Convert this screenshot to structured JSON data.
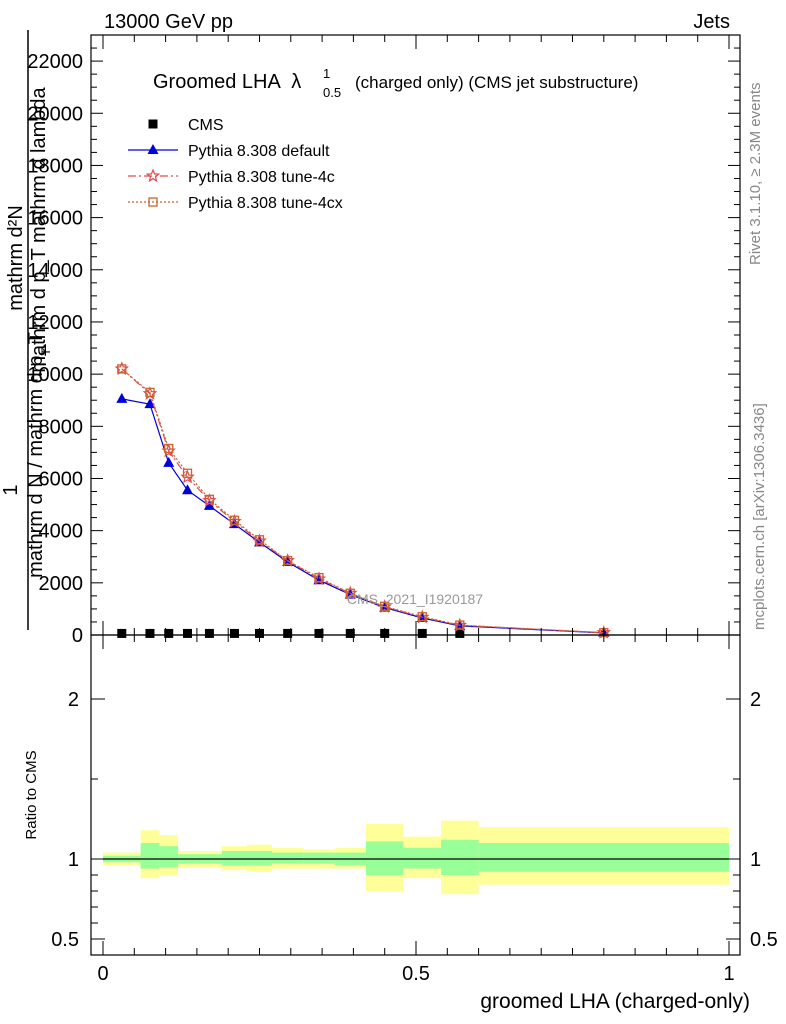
{
  "header": {
    "energy_label": "13000 GeV pp",
    "category_label": "Jets"
  },
  "side_text": {
    "rivet": "Rivet 3.1.10, ≥ 2.3M events",
    "mcplots": "mcplots.cern.ch [arXiv:1306.3436]"
  },
  "watermark": "CMS_2021_I1920187",
  "chart_data": [
    {
      "type": "line",
      "title_main": "Groomed LHA",
      "title_lambda": "λ",
      "title_sup": "1",
      "title_sub": "0.5",
      "title_rest": "(charged only) (CMS jet substructure)",
      "ylabel_top": "mathrm d²N",
      "ylabel_bottom": "mathrm d p_T mathrm d lambda",
      "ylabel_lower_top": "1",
      "ylabel_lower": "mathrm d N / mathrm d p_T",
      "ylabel_lower_sub": "T",
      "ylim": [
        0,
        23000
      ],
      "xlim": [
        -0.04,
        1.02
      ],
      "y_ticks": [
        0,
        2000,
        4000,
        6000,
        8000,
        10000,
        12000,
        14000,
        16000,
        18000,
        20000,
        22000
      ],
      "y_tick_labels": [
        "0",
        "2000",
        "4000",
        "6000",
        "8000",
        "10000",
        "12000",
        "14000",
        "16000",
        "18000",
        "20000",
        "22000"
      ],
      "legend": [
        {
          "key": "cms",
          "label": "CMS",
          "color": "#000000",
          "marker": "square"
        },
        {
          "key": "default",
          "label": "Pythia 8.308 default",
          "color": "#0000dd",
          "marker": "triangle"
        },
        {
          "key": "tune4c",
          "label": "Pythia 8.308 tune-4c",
          "color": "#e24a4a",
          "marker": "star"
        },
        {
          "key": "tune4cx",
          "label": "Pythia 8.308 tune-4cx",
          "color": "#c8642e",
          "marker": "open-square"
        }
      ],
      "x": [
        0.03,
        0.075,
        0.105,
        0.135,
        0.17,
        0.21,
        0.25,
        0.295,
        0.345,
        0.395,
        0.45,
        0.51,
        0.57,
        0.8
      ],
      "series": [
        {
          "key": "cms",
          "values": [
            60,
            60,
            60,
            60,
            60,
            60,
            60,
            60,
            60,
            60,
            60,
            60,
            60,
            0
          ]
        },
        {
          "key": "default",
          "values": [
            9050,
            8850,
            6600,
            5550,
            4950,
            4250,
            3550,
            2800,
            2100,
            1550,
            1050,
            650,
            350,
            80
          ]
        },
        {
          "key": "tune4c",
          "values": [
            10200,
            9250,
            7050,
            6050,
            5150,
            4350,
            3600,
            2850,
            2150,
            1600,
            1080,
            680,
            370,
            90
          ]
        },
        {
          "key": "tune4cx",
          "values": [
            10200,
            9300,
            7150,
            6200,
            5200,
            4400,
            3650,
            2850,
            2200,
            1600,
            1100,
            700,
            380,
            90
          ]
        }
      ]
    },
    {
      "type": "area",
      "ylabel": "Ratio to CMS",
      "xlabel": "groomed LHA (charged-only)",
      "ylim": [
        0.4,
        2.4
      ],
      "y_ticks": [
        0.5,
        1,
        2
      ],
      "y_tick_labels": [
        "0.5",
        "1",
        "2"
      ],
      "x_ticks": [
        0,
        0.5,
        1
      ],
      "x_tick_labels": [
        "0",
        "0.5",
        "1"
      ],
      "colors": {
        "outer": "#ffff99",
        "inner": "#99ff99",
        "line": "#000000"
      },
      "bins": [
        {
          "x0": 0.0,
          "x1": 0.06,
          "inner": [
            0.98,
            1.02
          ],
          "outer": [
            0.96,
            1.04
          ]
        },
        {
          "x0": 0.06,
          "x1": 0.09,
          "inner": [
            0.94,
            1.1
          ],
          "outer": [
            0.88,
            1.18
          ]
        },
        {
          "x0": 0.09,
          "x1": 0.12,
          "inner": [
            0.95,
            1.08
          ],
          "outer": [
            0.9,
            1.15
          ]
        },
        {
          "x0": 0.12,
          "x1": 0.15,
          "inner": [
            0.97,
            1.03
          ],
          "outer": [
            0.95,
            1.05
          ]
        },
        {
          "x0": 0.15,
          "x1": 0.19,
          "inner": [
            0.97,
            1.03
          ],
          "outer": [
            0.95,
            1.05
          ]
        },
        {
          "x0": 0.19,
          "x1": 0.23,
          "inner": [
            0.96,
            1.05
          ],
          "outer": [
            0.93,
            1.08
          ]
        },
        {
          "x0": 0.23,
          "x1": 0.27,
          "inner": [
            0.96,
            1.05
          ],
          "outer": [
            0.92,
            1.09
          ]
        },
        {
          "x0": 0.27,
          "x1": 0.32,
          "inner": [
            0.97,
            1.04
          ],
          "outer": [
            0.94,
            1.07
          ]
        },
        {
          "x0": 0.32,
          "x1": 0.37,
          "inner": [
            0.97,
            1.04
          ],
          "outer": [
            0.94,
            1.06
          ]
        },
        {
          "x0": 0.37,
          "x1": 0.42,
          "inner": [
            0.96,
            1.04
          ],
          "outer": [
            0.94,
            1.07
          ]
        },
        {
          "x0": 0.42,
          "x1": 0.48,
          "inner": [
            0.9,
            1.11
          ],
          "outer": [
            0.8,
            1.22
          ]
        },
        {
          "x0": 0.48,
          "x1": 0.54,
          "inner": [
            0.94,
            1.07
          ],
          "outer": [
            0.88,
            1.14
          ]
        },
        {
          "x0": 0.54,
          "x1": 0.6,
          "inner": [
            0.9,
            1.12
          ],
          "outer": [
            0.78,
            1.24
          ]
        },
        {
          "x0": 0.6,
          "x1": 1.0,
          "inner": [
            0.92,
            1.1
          ],
          "outer": [
            0.84,
            1.2
          ]
        }
      ]
    }
  ]
}
